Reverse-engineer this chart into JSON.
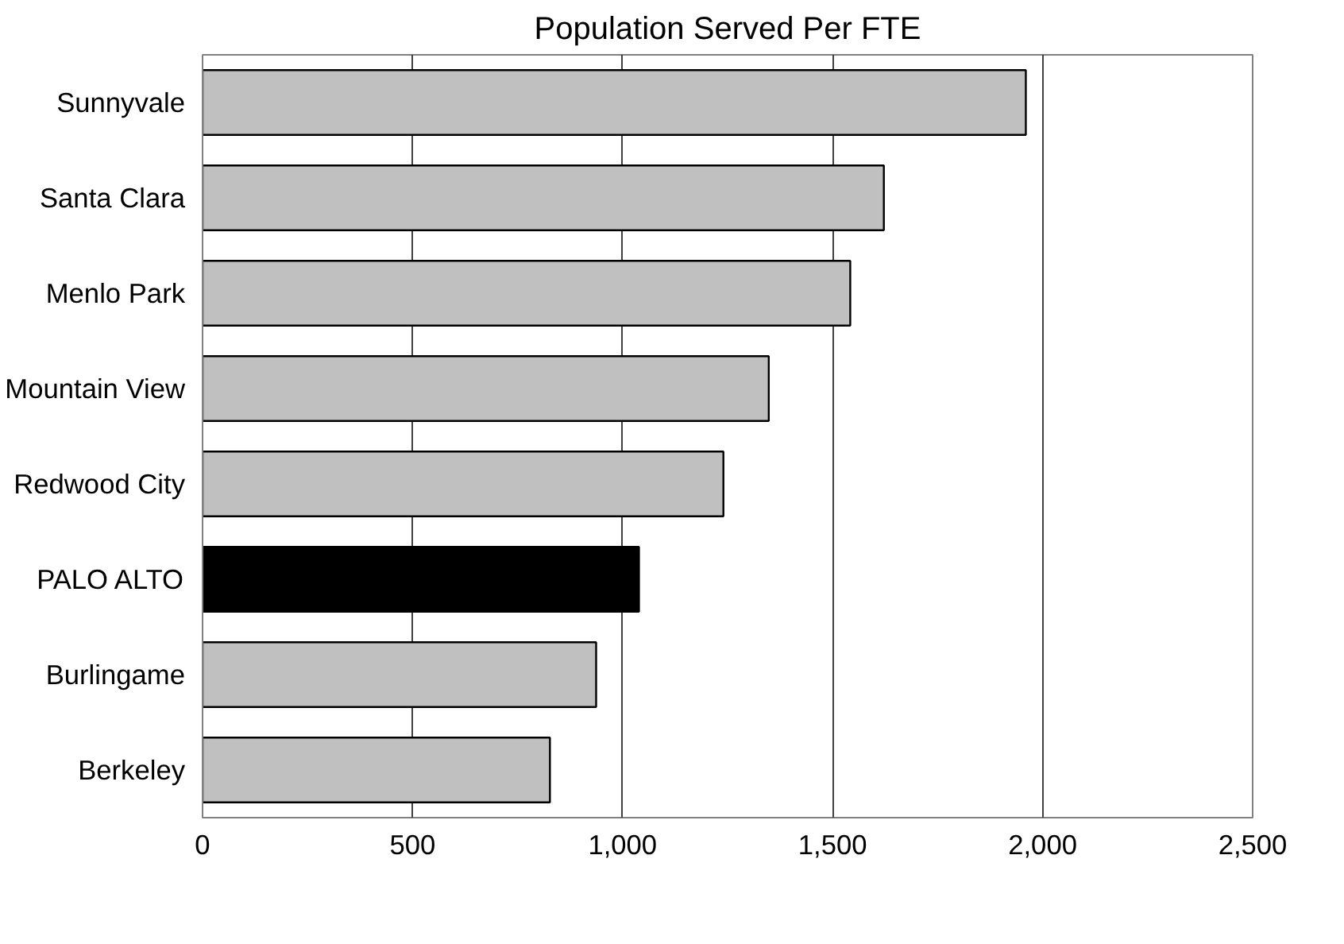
{
  "chart_data": {
    "type": "bar",
    "orientation": "horizontal",
    "title": "Population Served Per FTE",
    "categories": [
      "Sunnyvale",
      "Santa Clara",
      "Menlo Park",
      "Mountain View",
      "Redwood City",
      "PALO ALTO",
      "Burlingame",
      "Berkeley"
    ],
    "values": [
      1960,
      1622,
      1542,
      1348,
      1240,
      1039,
      937,
      827
    ],
    "colors": [
      "#c0c0c0",
      "#c0c0c0",
      "#c0c0c0",
      "#c0c0c0",
      "#c0c0c0",
      "#000000",
      "#c0c0c0",
      "#c0c0c0"
    ],
    "xlim": [
      0,
      2500
    ],
    "xticks": [
      {
        "value": 0,
        "label": "0"
      },
      {
        "value": 500,
        "label": "500"
      },
      {
        "value": 1000,
        "label": "1,000"
      },
      {
        "value": 1500,
        "label": "1,500"
      },
      {
        "value": 2000,
        "label": "2,000"
      },
      {
        "value": 2500,
        "label": "2,500"
      }
    ],
    "grid": "x"
  }
}
